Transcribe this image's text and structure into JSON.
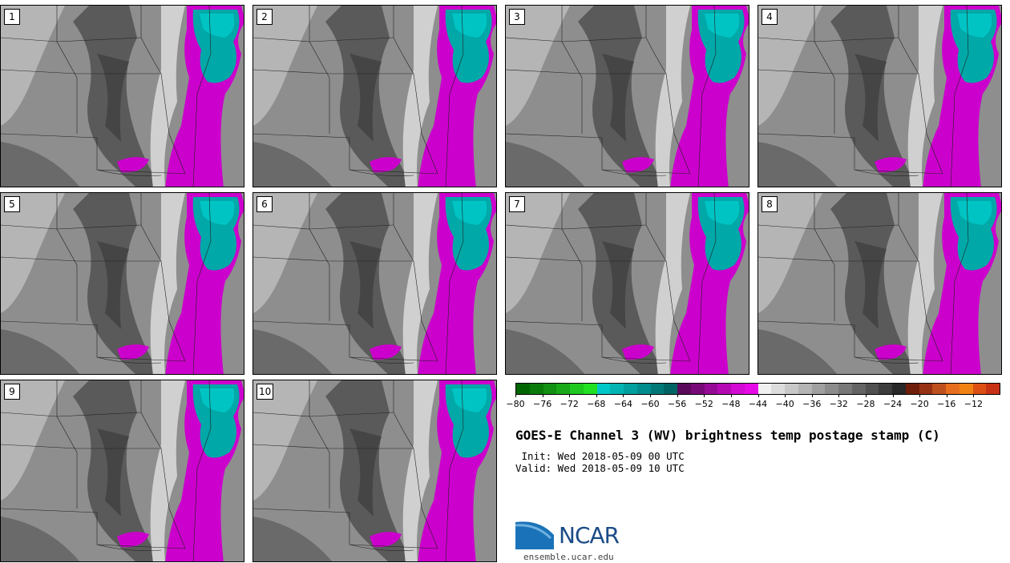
{
  "panels": [
    "1",
    "2",
    "3",
    "4",
    "5",
    "6",
    "7",
    "8",
    "9",
    "10"
  ],
  "colorbar": {
    "colors": [
      "#006400",
      "#0a7a0a",
      "#129012",
      "#18a818",
      "#1ec81e",
      "#22e022",
      "#00c8c8",
      "#00b4b4",
      "#00a0a0",
      "#008c8c",
      "#007878",
      "#006464",
      "#5a0a5a",
      "#780a78",
      "#960a96",
      "#b40ab4",
      "#d20ad2",
      "#e60ae6",
      "#f0f0f0",
      "#dcdcdc",
      "#c8c8c8",
      "#b4b4b4",
      "#a0a0a0",
      "#8c8c8c",
      "#787878",
      "#646464",
      "#505050",
      "#3c3c3c",
      "#282828",
      "#6e1e0a",
      "#963214",
      "#be501e",
      "#e66e1e",
      "#f08214",
      "#dc5014",
      "#c83214"
    ],
    "ticks": [
      "−80",
      "−76",
      "−72",
      "−68",
      "−64",
      "−60",
      "−56",
      "−52",
      "−48",
      "−44",
      "−40",
      "−36",
      "−32",
      "−28",
      "−24",
      "−20",
      "−16",
      "−12"
    ]
  },
  "title": "GOES-E Channel 3 (WV) brightness temp postage stamp (C)",
  "init": " Init: Wed 2018-05-09 00 UTC",
  "valid": "Valid: Wed 2018-05-09 10 UTC",
  "logo_text": "NCAR",
  "site": "ensemble.ucar.edu"
}
